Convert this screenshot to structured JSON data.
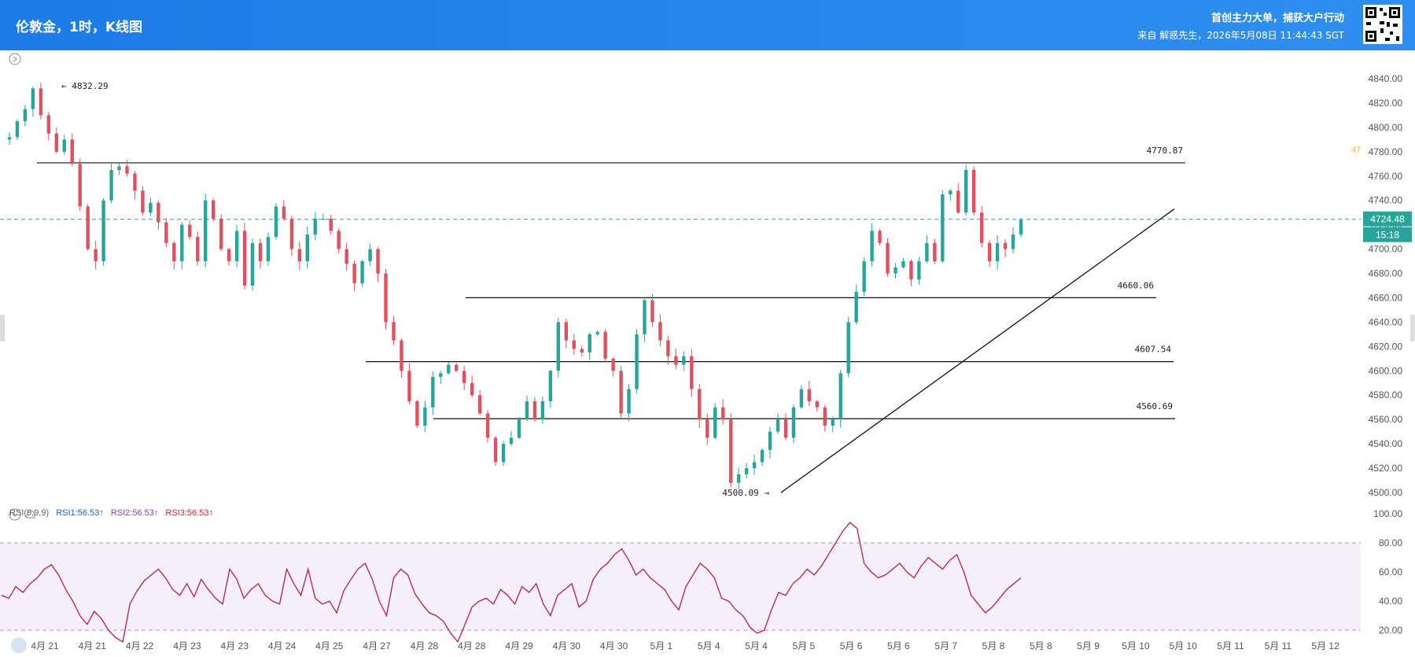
{
  "header": {
    "title": "伦敦金，1时，K线图",
    "slogan": "首创主力大单，捕获大户行动",
    "source": "来自 解惑先生，2026年5月08日 11:44:43 SGT"
  },
  "rsi_legend": {
    "name": "RSI(9,9,9)",
    "rsi1": "RSI1:56.53↑",
    "rsi2": "RSI2:56.53↑",
    "rsi3": "RSI3:56.53↑"
  },
  "colors": {
    "up": "#26a69a",
    "down": "#e0505f",
    "rsi_line": "#c2185b",
    "rsi2": "#8e44ad",
    "rsi3": "#d32f2f",
    "price_tag": "#26a69a",
    "header": "#1d7be6"
  },
  "icons": [
    "expand-icon",
    "collapse-icon",
    "bell-icon",
    "qr-code-icon",
    "logo-icon"
  ],
  "chart_data": [
    {
      "type": "candlestick",
      "title": "伦敦金，1时，K线图",
      "ylim": [
        4490,
        4850
      ],
      "y_ticks": [
        "4840.00",
        "4820.00",
        "4800.00",
        "4780.00",
        "4760.00",
        "4740.00",
        "4720.00",
        "4700.00",
        "4680.00",
        "4660.00",
        "4640.00",
        "4620.00",
        "4600.00",
        "4580.00",
        "4560.00",
        "4540.00",
        "4520.00",
        "4500.00"
      ],
      "x_ticks": [
        "4月 21",
        "4月 21",
        "4月 22",
        "4月 23",
        "4月 23",
        "4月 24",
        "4月 25",
        "4月 27",
        "4月 28",
        "4月 28",
        "4月 29",
        "4月 30",
        "4月 30",
        "5月 1",
        "5月 4",
        "5月 4",
        "5月 5",
        "5月 6",
        "5月 6",
        "5月 7",
        "5月 8",
        "5月 8",
        "5月 9",
        "5月 10",
        "5月 10",
        "5月 11",
        "5月 11",
        "5月 12"
      ],
      "last_price": "4724.48",
      "countdown": "15:18",
      "partial_label": "47",
      "horizontal_levels": [
        {
          "label": "4770.87",
          "value": 4770.87
        },
        {
          "label": "4660.06",
          "value": 4660.06
        },
        {
          "label": "4607.54",
          "value": 4607.54
        },
        {
          "label": "4560.69",
          "value": 4560.69
        }
      ],
      "high_marker": {
        "label": "4832.29",
        "value": 4832.29
      },
      "low_marker": {
        "label": "4500.09",
        "value": 4500.09
      },
      "trendline": [
        {
          "date": "5月 4",
          "value": 4500
        },
        {
          "date": "5月 9",
          "value": 4733
        }
      ],
      "close_path": [
        4790,
        4792,
        4805,
        4815,
        4832,
        4810,
        4795,
        4780,
        4790,
        4770,
        4735,
        4700,
        4690,
        4740,
        4765,
        4768,
        4762,
        4748,
        4730,
        4738,
        4722,
        4705,
        4690,
        4720,
        4710,
        4690,
        4740,
        4725,
        4700,
        4690,
        4715,
        4670,
        4705,
        4690,
        4710,
        4735,
        4725,
        4700,
        4690,
        4712,
        4725,
        4725,
        4715,
        4700,
        4688,
        4672,
        4690,
        4700,
        4680,
        4640,
        4625,
        4600,
        4575,
        4555,
        4570,
        4595,
        4598,
        4605,
        4600,
        4590,
        4580,
        4565,
        4545,
        4525,
        4540,
        4545,
        4560,
        4575,
        4560,
        4575,
        4600,
        4640,
        4625,
        4618,
        4615,
        4630,
        4632,
        4610,
        4600,
        4565,
        4585,
        4630,
        4658,
        4640,
        4625,
        4612,
        4605,
        4612,
        4585,
        4560,
        4545,
        4570,
        4560,
        4508,
        4515,
        4520,
        4525,
        4535,
        4550,
        4560,
        4545,
        4570,
        4585,
        4575,
        4570,
        4555,
        4560,
        4598,
        4640,
        4665,
        4690,
        4715,
        4705,
        4680,
        4685,
        4690,
        4675,
        4690,
        4705,
        4690,
        4745,
        4748,
        4730,
        4765,
        4730,
        4705,
        4690,
        4705,
        4700,
        4712,
        4724
      ]
    },
    {
      "type": "line",
      "name": "RSI(9,9,9)",
      "ylim": [
        0,
        100
      ],
      "y_ticks": [
        "100.00",
        "80.00",
        "60.00",
        "40.00",
        "20.00"
      ],
      "band": [
        20,
        80
      ],
      "values": [
        44,
        42,
        50,
        46,
        52,
        56,
        62,
        65,
        58,
        48,
        40,
        30,
        24,
        33,
        28,
        20,
        15,
        12,
        38,
        47,
        54,
        58,
        62,
        56,
        48,
        44,
        52,
        43,
        55,
        48,
        42,
        38,
        62,
        55,
        42,
        48,
        52,
        44,
        40,
        38,
        62,
        52,
        44,
        62,
        42,
        38,
        40,
        32,
        47,
        55,
        62,
        66,
        55,
        40,
        30,
        56,
        62,
        58,
        45,
        38,
        32,
        30,
        26,
        18,
        12,
        24,
        36,
        40,
        42,
        38,
        48,
        44,
        38,
        50,
        46,
        52,
        38,
        30,
        44,
        48,
        52,
        36,
        40,
        55,
        62,
        66,
        72,
        76,
        68,
        58,
        62,
        56,
        52,
        48,
        40,
        34,
        50,
        58,
        66,
        62,
        56,
        42,
        40,
        34,
        30,
        22,
        18,
        20,
        34,
        46,
        44,
        52,
        56,
        62,
        58,
        64,
        72,
        80,
        88,
        94,
        90,
        66,
        60,
        56,
        58,
        62,
        66,
        60,
        56,
        64,
        70,
        66,
        62,
        68,
        72,
        60,
        44,
        38,
        32,
        36,
        42,
        48,
        52,
        56
      ]
    }
  ]
}
